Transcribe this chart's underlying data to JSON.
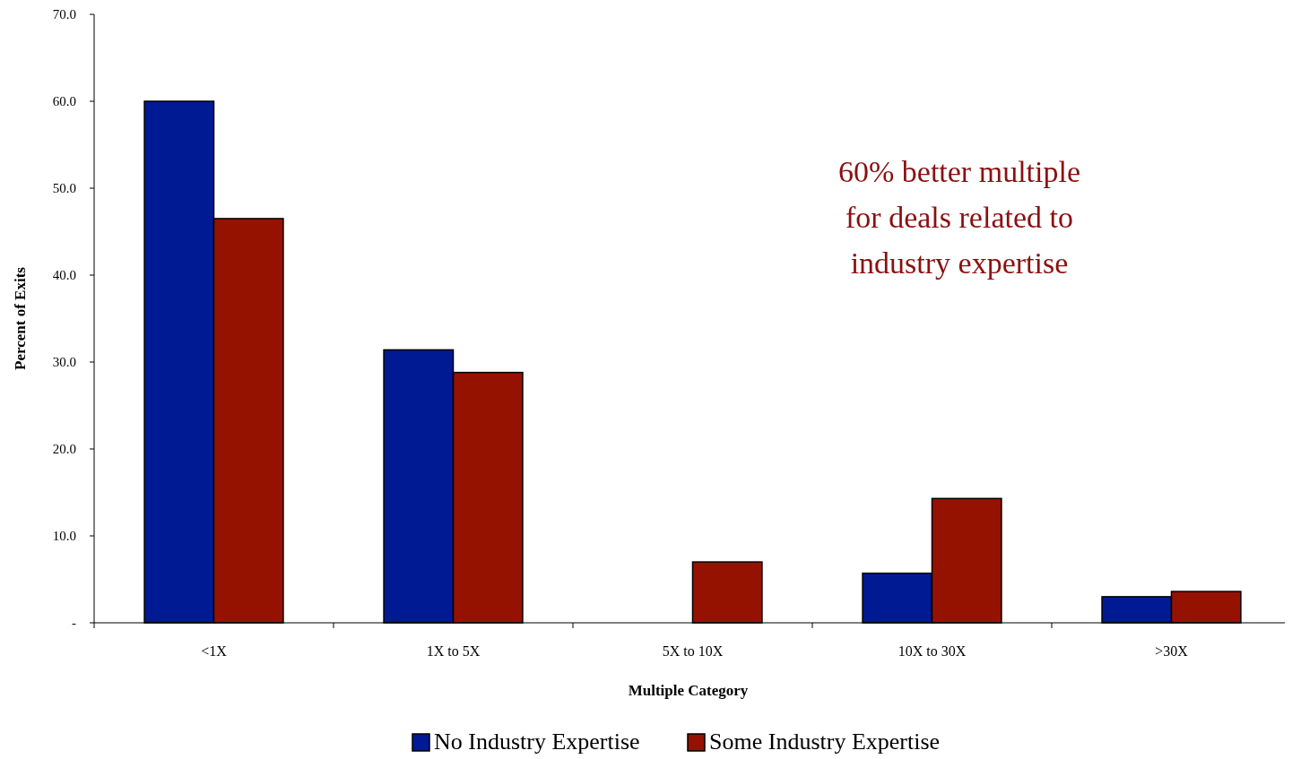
{
  "chart_data": {
    "type": "bar",
    "xlabel": "Multiple Category",
    "ylabel": "Percent of Exits",
    "categories": [
      "<1X",
      "1X to 5X",
      "5X to 10X",
      "10X to 30X",
      ">30X"
    ],
    "series": [
      {
        "name": "No Industry Expertise",
        "color": "#001a94",
        "values": [
          60.0,
          31.4,
          0,
          5.7,
          3.0
        ]
      },
      {
        "name": "Some Industry Expertise",
        "color": "#961200",
        "values": [
          46.5,
          28.8,
          7.0,
          14.3,
          3.6
        ]
      }
    ],
    "ylim": [
      0,
      70
    ],
    "yticks": [
      {
        "value": 0,
        "label": "-"
      },
      {
        "value": 10,
        "label": "10.0"
      },
      {
        "value": 20,
        "label": "20.0"
      },
      {
        "value": 30,
        "label": "30.0"
      },
      {
        "value": 40,
        "label": "40.0"
      },
      {
        "value": 50,
        "label": "50.0"
      },
      {
        "value": 60,
        "label": "60.0"
      },
      {
        "value": 70,
        "label": "70.0"
      }
    ],
    "annotations": [
      "60% better multiple\nfor deals related to\nindustry expertise"
    ],
    "grid": false,
    "legend": "bottom"
  }
}
